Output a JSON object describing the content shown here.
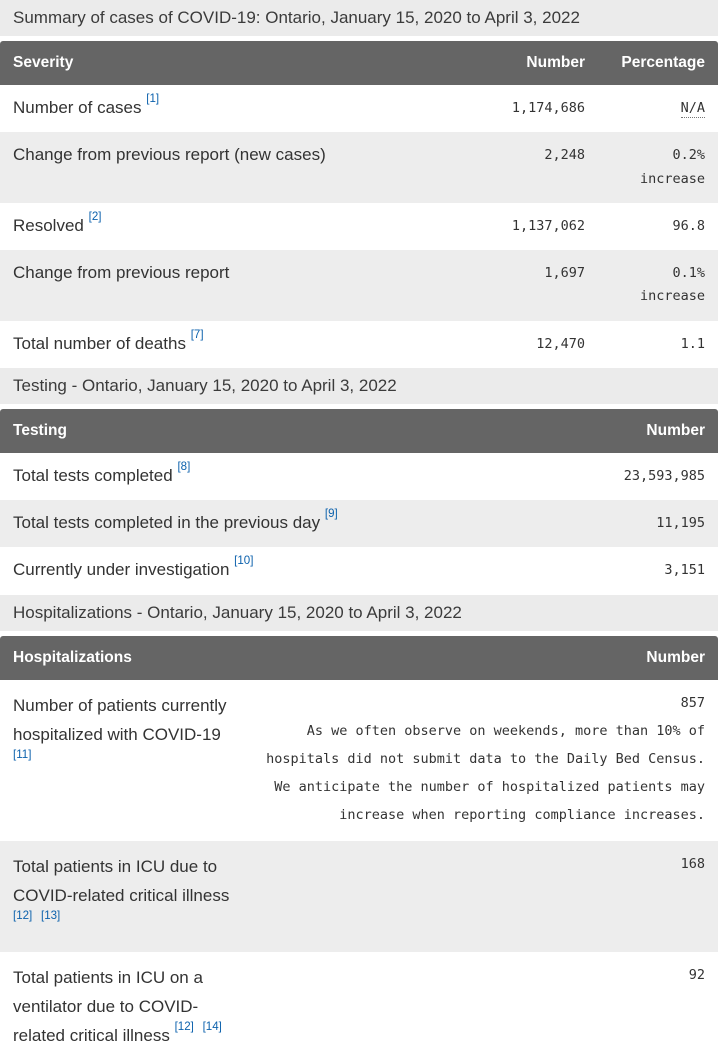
{
  "colors": {
    "header_bg": "#656565",
    "section_title_bg": "#ebebeb",
    "alt_row_bg": "#ededed",
    "link_blue": "#0d62ad",
    "text": "#333333"
  },
  "tables": [
    {
      "section_title": "Summary of cases of COVID-19: Ontario, January 15, 2020 to April 3, 2022",
      "columns": [
        "Severity",
        "Number",
        "Percentage"
      ],
      "rows": [
        {
          "label": "Number of cases",
          "footnotes": [
            "[1]"
          ],
          "number": "1,174,686",
          "percentage": "N/A"
        },
        {
          "label": "Change from previous report (new cases)",
          "footnotes": [],
          "number": "2,248",
          "percentage": "0.2%",
          "percentage_note": "increase"
        },
        {
          "label": "Resolved",
          "footnotes": [
            "[2]"
          ],
          "number": "1,137,062",
          "percentage": "96.8"
        },
        {
          "label": "Change from previous report",
          "footnotes": [],
          "number": "1,697",
          "percentage": "0.1%",
          "percentage_note": "increase"
        },
        {
          "label": "Total number of deaths",
          "footnotes": [
            "[7]"
          ],
          "number": "12,470",
          "percentage": "1.1"
        }
      ]
    },
    {
      "section_title": "Testing - Ontario, January 15, 2020 to April 3, 2022",
      "columns": [
        "Testing",
        "Number"
      ],
      "rows": [
        {
          "label": "Total tests completed",
          "footnotes": [
            "[8]"
          ],
          "number": "23,593,985"
        },
        {
          "label": "Total tests completed in the previous day",
          "footnotes": [
            "[9]"
          ],
          "number": "11,195"
        },
        {
          "label": "Currently under investigation",
          "footnotes": [
            "[10]"
          ],
          "number": "3,151"
        }
      ]
    },
    {
      "section_title": "Hospitalizations - Ontario, January 15, 2020 to April 3, 2022",
      "columns": [
        "Hospitalizations",
        "Number"
      ],
      "rows": [
        {
          "label": "Number of patients currently hospitalized with COVID-19",
          "footnotes": [
            "[11]"
          ],
          "number": "857",
          "note": "As we often observe on weekends, more than 10% of hospitals did not submit data to the Daily Bed Census. We anticipate the number of hospitalized patients may increase when reporting compliance increases."
        },
        {
          "label": "Total patients in ICU due to COVID-related critical illness",
          "footnotes": [
            "[12]",
            "[13]"
          ],
          "number": "168"
        },
        {
          "label": "Total patients in ICU on a ventilator due to COVID-related critical illness",
          "footnotes": [
            "[12]",
            "[14]"
          ],
          "number": "92"
        }
      ]
    }
  ]
}
